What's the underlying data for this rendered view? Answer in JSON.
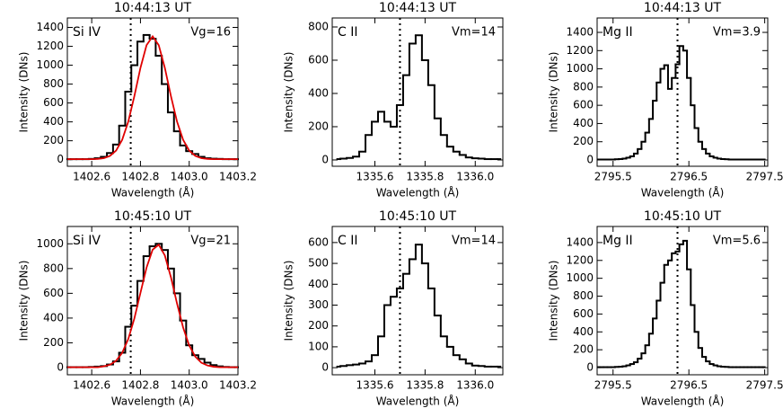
{
  "chart_data": [
    {
      "type": "line",
      "title": "10:44:13 UT",
      "annotations": [
        "Si IV",
        "Vg=16"
      ],
      "xlabel": "Wavelength (Å)",
      "ylabel": "Intensity (DNs)",
      "xlim": [
        1402.5,
        1403.2
      ],
      "ylim": [
        -70,
        1500
      ],
      "xticks": [
        1402.6,
        1402.8,
        {
          "value": 1403,
          "label": "1403.0"
        },
        1403.2
      ],
      "yticks": [
        0,
        200,
        400,
        600,
        800,
        1000,
        1200,
        1400
      ],
      "ref_x": 1402.76,
      "x": [
        1402.5,
        1402.525,
        1402.55,
        1402.575,
        1402.6,
        1402.625,
        1402.65,
        1402.675,
        1402.7,
        1402.725,
        1402.75,
        1402.775,
        1402.8,
        1402.825,
        1402.85,
        1402.875,
        1402.9,
        1402.925,
        1402.95,
        1402.975,
        1403,
        1403.025,
        1403.05,
        1403.075,
        1403.1,
        1403.125,
        1403.15,
        1403.175,
        1403.2
      ],
      "series": [
        {
          "color": "#000000",
          "step": true,
          "values": [
            5,
            5,
            5,
            5,
            8,
            15,
            30,
            70,
            160,
            360,
            720,
            1000,
            1250,
            1320,
            1280,
            1100,
            800,
            500,
            300,
            150,
            90,
            60,
            30,
            15,
            10,
            8,
            5,
            5,
            5
          ]
        },
        {
          "color": "#e00000",
          "values": [
            5,
            5,
            5,
            5,
            5,
            8,
            16,
            40,
            96,
            210,
            403,
            673,
            972,
            1212,
            1305,
            1212,
            972,
            673,
            403,
            210,
            96,
            40,
            16,
            8,
            5,
            5,
            5,
            5,
            5
          ]
        }
      ]
    },
    {
      "type": "line",
      "title": "10:44:13 UT",
      "annotations": [
        "C II",
        "Vm=14"
      ],
      "xlabel": "Wavelength (Å)",
      "ylabel": "Intensity (DNs)",
      "xlim": [
        1335.43,
        1336.11
      ],
      "ylim": [
        -38,
        854
      ],
      "xticks": [
        1335.6,
        1335.8,
        {
          "value": 1336,
          "label": "1336.0"
        }
      ],
      "yticks": [
        0,
        200,
        400,
        600,
        800
      ],
      "ref_x": 1335.7,
      "x": [
        1335.45,
        1335.475,
        1335.5,
        1335.525,
        1335.55,
        1335.575,
        1335.6,
        1335.625,
        1335.65,
        1335.675,
        1335.7,
        1335.725,
        1335.75,
        1335.775,
        1335.8,
        1335.825,
        1335.85,
        1335.875,
        1335.9,
        1335.925,
        1335.95,
        1335.975,
        1336,
        1336.025,
        1336.05,
        1336.075,
        1336.1
      ],
      "series": [
        {
          "color": "#000000",
          "step": true,
          "values": [
            5,
            8,
            12,
            20,
            50,
            150,
            230,
            290,
            230,
            200,
            330,
            510,
            700,
            750,
            600,
            450,
            250,
            150,
            80,
            50,
            30,
            15,
            10,
            8,
            5,
            5,
            5
          ]
        }
      ]
    },
    {
      "type": "line",
      "title": "10:44:13 UT",
      "annotations": [
        "Mg II",
        "Vm=3.9"
      ],
      "xlabel": "Wavelength (Å)",
      "ylabel": "Intensity (DNs)",
      "xlim": [
        2795.29,
        2797.54
      ],
      "ylim": [
        -69,
        1558
      ],
      "xticks": [
        2795.5,
        2796.5,
        2797.5
      ],
      "yticks": [
        0,
        200,
        400,
        600,
        800,
        1000,
        1200,
        1400
      ],
      "ref_x": 2796.35,
      "x": [
        2795.3,
        2795.35,
        2795.4,
        2795.45,
        2795.5,
        2795.55,
        2795.6,
        2795.65,
        2795.7,
        2795.75,
        2795.8,
        2795.85,
        2795.9,
        2795.95,
        2796,
        2796.05,
        2796.1,
        2796.15,
        2796.2,
        2796.25,
        2796.3,
        2796.35,
        2796.4,
        2796.45,
        2796.5,
        2796.55,
        2796.6,
        2796.65,
        2796.7,
        2796.75,
        2796.8,
        2796.85,
        2796.9,
        2796.95,
        2797,
        2797.05,
        2797.1,
        2797.15,
        2797.2,
        2797.25,
        2797.3,
        2797.35,
        2797.4,
        2797.45,
        2797.5
      ],
      "series": [
        {
          "color": "#000000",
          "step": true,
          "values": [
            5,
            5,
            5,
            5,
            5,
            8,
            10,
            15,
            25,
            40,
            70,
            120,
            200,
            300,
            450,
            650,
            850,
            1000,
            1040,
            780,
            900,
            1050,
            1250,
            1200,
            900,
            600,
            350,
            200,
            120,
            70,
            40,
            25,
            15,
            10,
            8,
            5,
            5,
            5,
            5,
            5,
            5,
            5,
            5,
            5,
            5
          ]
        }
      ]
    },
    {
      "type": "line",
      "title": "10:45:10 UT",
      "annotations": [
        "Si IV",
        "Vg=21"
      ],
      "xlabel": "Wavelength (Å)",
      "ylabel": "Intensity (DNs)",
      "xlim": [
        1402.5,
        1403.2
      ],
      "ylim": [
        -58,
        1140
      ],
      "xticks": [
        1402.6,
        1402.8,
        {
          "value": 1403,
          "label": "1403.0"
        },
        1403.2
      ],
      "yticks": [
        0,
        200,
        400,
        600,
        800,
        1000
      ],
      "ref_x": 1402.76,
      "x": [
        1402.5,
        1402.525,
        1402.55,
        1402.575,
        1402.6,
        1402.625,
        1402.65,
        1402.675,
        1402.7,
        1402.725,
        1402.75,
        1402.775,
        1402.8,
        1402.825,
        1402.85,
        1402.875,
        1402.9,
        1402.925,
        1402.95,
        1402.975,
        1403,
        1403.025,
        1403.05,
        1403.075,
        1403.1,
        1403.125,
        1403.15,
        1403.175,
        1403.2
      ],
      "series": [
        {
          "color": "#000000",
          "step": true,
          "values": [
            3,
            3,
            3,
            3,
            5,
            8,
            12,
            25,
            50,
            120,
            330,
            500,
            700,
            900,
            980,
            1000,
            950,
            800,
            600,
            380,
            180,
            100,
            70,
            40,
            20,
            10,
            5,
            3,
            3
          ]
        },
        {
          "color": "#e00000",
          "values": [
            3,
            3,
            3,
            3,
            3,
            3,
            10,
            23,
            55,
            119,
            231,
            397,
            604,
            808,
            953,
            993,
            906,
            730,
            518,
            324,
            179,
            88,
            39,
            17,
            7,
            3,
            3,
            3,
            3
          ]
        }
      ]
    },
    {
      "type": "line",
      "title": "10:45:10 UT",
      "annotations": [
        "C II",
        "Vm=14"
      ],
      "xlabel": "Wavelength (Å)",
      "ylabel": "Intensity (DNs)",
      "xlim": [
        1335.43,
        1336.11
      ],
      "ylim": [
        -34,
        677
      ],
      "xticks": [
        1335.6,
        1335.8,
        {
          "value": 1336,
          "label": "1336.0"
        }
      ],
      "yticks": [
        0,
        100,
        200,
        300,
        400,
        500,
        600
      ],
      "ref_x": 1335.7,
      "x": [
        1335.45,
        1335.475,
        1335.5,
        1335.525,
        1335.55,
        1335.575,
        1335.6,
        1335.625,
        1335.65,
        1335.675,
        1335.7,
        1335.725,
        1335.75,
        1335.775,
        1335.8,
        1335.825,
        1335.85,
        1335.875,
        1335.9,
        1335.925,
        1335.95,
        1335.975,
        1336,
        1336.025,
        1336.05,
        1336.075,
        1336.1
      ],
      "series": [
        {
          "color": "#000000",
          "step": true,
          "values": [
            5,
            8,
            12,
            15,
            20,
            30,
            60,
            150,
            300,
            340,
            380,
            450,
            520,
            590,
            500,
            380,
            250,
            150,
            100,
            60,
            40,
            20,
            10,
            8,
            5,
            5,
            5
          ]
        }
      ]
    },
    {
      "type": "line",
      "title": "10:45:10 UT",
      "annotations": [
        "Mg II",
        "Vm=5.6"
      ],
      "xlabel": "Wavelength (Å)",
      "ylabel": "Intensity (DNs)",
      "xlim": [
        2795.29,
        2797.54
      ],
      "ylim": [
        -80,
        1580
      ],
      "xticks": [
        2795.5,
        2796.5,
        2797.5
      ],
      "yticks": [
        0,
        200,
        400,
        600,
        800,
        1000,
        1200,
        1400
      ],
      "ref_x": 2796.35,
      "x": [
        2795.3,
        2795.35,
        2795.4,
        2795.45,
        2795.5,
        2795.55,
        2795.6,
        2795.65,
        2795.7,
        2795.75,
        2795.8,
        2795.85,
        2795.9,
        2795.95,
        2796,
        2796.05,
        2796.1,
        2796.15,
        2796.2,
        2796.25,
        2796.3,
        2796.35,
        2796.4,
        2796.45,
        2796.5,
        2796.55,
        2796.6,
        2796.65,
        2796.7,
        2796.75,
        2796.8,
        2796.85,
        2796.9,
        2796.95,
        2797,
        2797.05,
        2797.1,
        2797.15,
        2797.2,
        2797.25,
        2797.3,
        2797.35,
        2797.4,
        2797.45,
        2797.5
      ],
      "series": [
        {
          "color": "#000000",
          "step": true,
          "values": [
            5,
            5,
            5,
            5,
            5,
            8,
            10,
            15,
            25,
            40,
            60,
            100,
            160,
            250,
            380,
            550,
            750,
            950,
            1150,
            1200,
            1280,
            1300,
            1380,
            1420,
            1100,
            700,
            400,
            220,
            120,
            70,
            40,
            25,
            15,
            10,
            8,
            5,
            5,
            5,
            5,
            5,
            5,
            5,
            5,
            5,
            5
          ]
        }
      ]
    }
  ]
}
